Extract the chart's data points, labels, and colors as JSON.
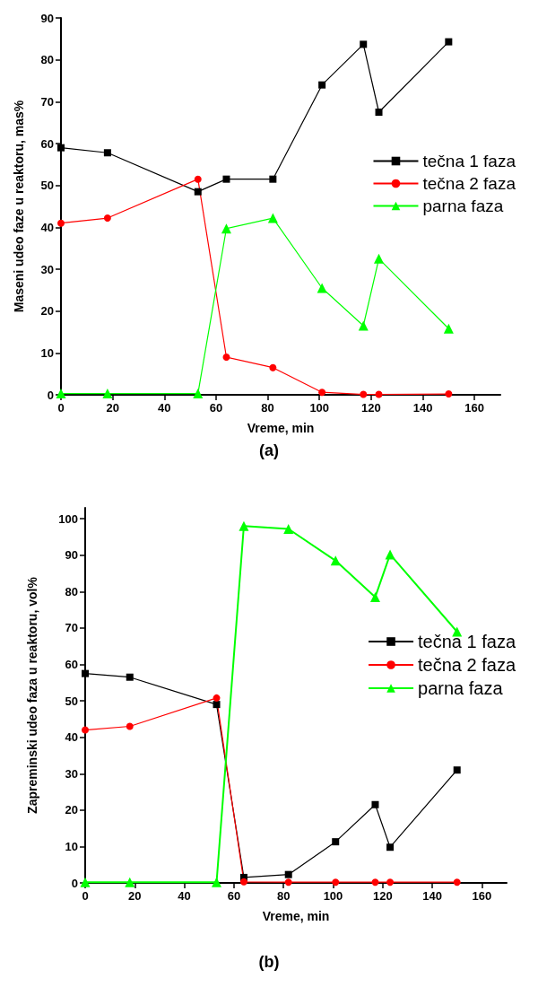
{
  "chart_data": [
    {
      "type": "line",
      "xlabel": "Vreme, min",
      "ylabel": "Maseni udeo faze u reaktoru, mas%",
      "annotations": [
        "(a)"
      ],
      "x": [
        0,
        18,
        53,
        64,
        82,
        101,
        117,
        123,
        150
      ],
      "xlim": [
        0,
        170
      ],
      "xticks": [
        0,
        20,
        40,
        60,
        80,
        100,
        120,
        140,
        160
      ],
      "ylim": [
        0,
        90
      ],
      "yticks": [
        0,
        10,
        20,
        30,
        40,
        50,
        60,
        70,
        80,
        90
      ],
      "legend": "right",
      "grid": false,
      "series": [
        {
          "name": "tečna 1 faza",
          "color": "#000000",
          "marker": "square",
          "values": [
            59,
            57.8,
            48.5,
            51.5,
            51.5,
            74,
            83.7,
            67.5,
            84.3
          ]
        },
        {
          "name": "tečna 2 faza",
          "color": "#ff0000",
          "marker": "circle",
          "values": [
            41,
            42.2,
            51.5,
            9,
            6.5,
            0.6,
            0.1,
            0.1,
            0.2
          ]
        },
        {
          "name": "parna faza",
          "color": "#00ff00",
          "marker": "triangle",
          "values": [
            0.3,
            0.3,
            0.3,
            39.7,
            42.2,
            25.5,
            16.5,
            32.5,
            15.8
          ]
        }
      ]
    },
    {
      "type": "line",
      "xlabel": "Vreme, min",
      "ylabel": "Zapreminski udeo faza u reaktoru, vol%",
      "annotations": [
        "(b)"
      ],
      "x": [
        0,
        18,
        53,
        64,
        82,
        101,
        117,
        123,
        150
      ],
      "xlim": [
        0,
        170
      ],
      "xticks": [
        0,
        20,
        40,
        60,
        80,
        100,
        120,
        140,
        160
      ],
      "ylim": [
        0,
        103
      ],
      "yticks": [
        0,
        10,
        20,
        30,
        40,
        50,
        60,
        70,
        80,
        90,
        100
      ],
      "legend": "right",
      "grid": false,
      "series": [
        {
          "name": "tečna 1 faza",
          "color": "#000000",
          "marker": "square",
          "values": [
            57.5,
            56.5,
            49,
            1.5,
            2.3,
            11.3,
            21.5,
            9.8,
            31
          ]
        },
        {
          "name": "tečna 2 faza",
          "color": "#ff0000",
          "marker": "circle",
          "values": [
            42,
            43,
            50.8,
            0.3,
            0.2,
            0.2,
            0.2,
            0.2,
            0.2
          ]
        },
        {
          "name": "parna faza",
          "color": "#00ff00",
          "marker": "triangle",
          "values": [
            0.2,
            0.2,
            0.2,
            98,
            97.2,
            88.5,
            78.5,
            90.2,
            69
          ]
        }
      ]
    }
  ]
}
